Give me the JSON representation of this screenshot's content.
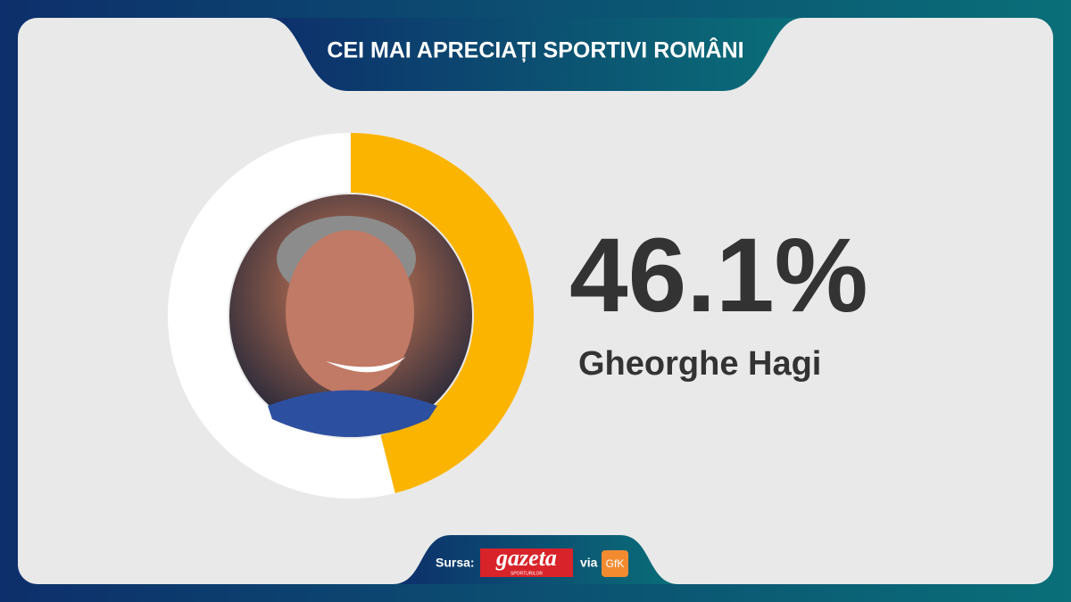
{
  "chart_data": {
    "type": "donut",
    "title": "CEI MAI APRECIAȚI SPORTIVI ROMÂNI",
    "categories": [
      "Gheorghe Hagi"
    ],
    "values": [
      46.1
    ],
    "value_labels": [
      "46.1%"
    ],
    "color": "#fbb400",
    "source": {
      "label": "Sursa:",
      "publisher": "gazeta",
      "publisher_sub": "SPORTURILOR",
      "via": "via",
      "partner": "GfK"
    }
  }
}
